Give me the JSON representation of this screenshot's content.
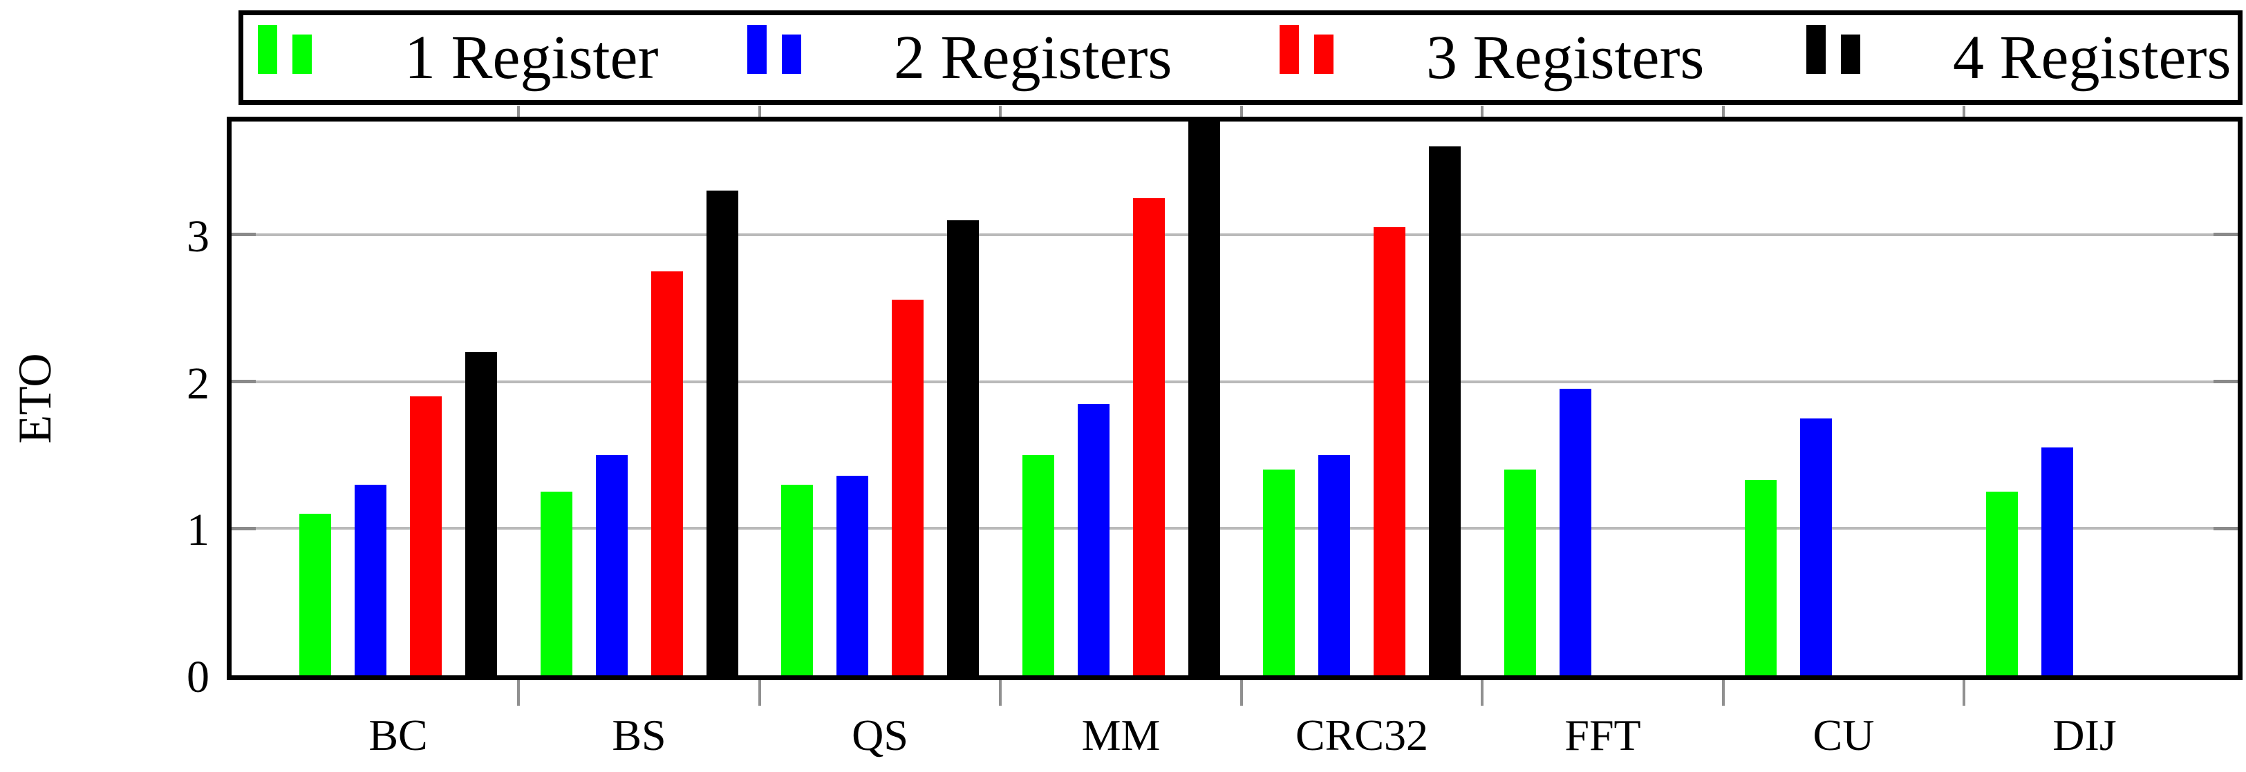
{
  "legend": {
    "items": [
      {
        "label": "1 Register",
        "color": "#00ff00"
      },
      {
        "label": "2 Registers",
        "color": "#0000ff"
      },
      {
        "label": "3 Registers",
        "color": "#ff0000"
      },
      {
        "label": "4 Registers",
        "color": "#000000"
      }
    ]
  },
  "chart_data": {
    "type": "bar",
    "title": "",
    "xlabel": "",
    "ylabel": "ETO",
    "categories": [
      "BC",
      "BS",
      "QS",
      "MM",
      "CRC32",
      "FFT",
      "CU",
      "DIJ"
    ],
    "series": [
      {
        "name": "1 Register",
        "color": "#00ff00",
        "values": [
          1.1,
          1.25,
          1.3,
          1.5,
          1.4,
          1.4,
          1.33,
          1.25
        ]
      },
      {
        "name": "2 Registers",
        "color": "#0000ff",
        "values": [
          1.3,
          1.5,
          1.36,
          1.85,
          1.5,
          1.95,
          1.75,
          1.55
        ]
      },
      {
        "name": "3 Registers",
        "color": "#ff0000",
        "values": [
          1.9,
          2.75,
          2.56,
          3.25,
          3.05,
          null,
          null,
          null
        ]
      },
      {
        "name": "4 Registers",
        "color": "#000000",
        "values": [
          2.2,
          3.3,
          3.1,
          3.8,
          3.6,
          null,
          null,
          null
        ]
      }
    ],
    "yticks": [
      0,
      1,
      2,
      3
    ],
    "ylim": [
      0,
      3.8
    ],
    "grid": "horizontal",
    "legend_position": "top",
    "note": "MM 4-Registers bar reaches the top of the plot area (clipped at axis maximum)"
  },
  "colors": {
    "background": "#ffffff",
    "frame": "#000000",
    "gridline": "#bababa",
    "inner_tick": "#8a8a8a",
    "boundary_tick": "#909090"
  }
}
